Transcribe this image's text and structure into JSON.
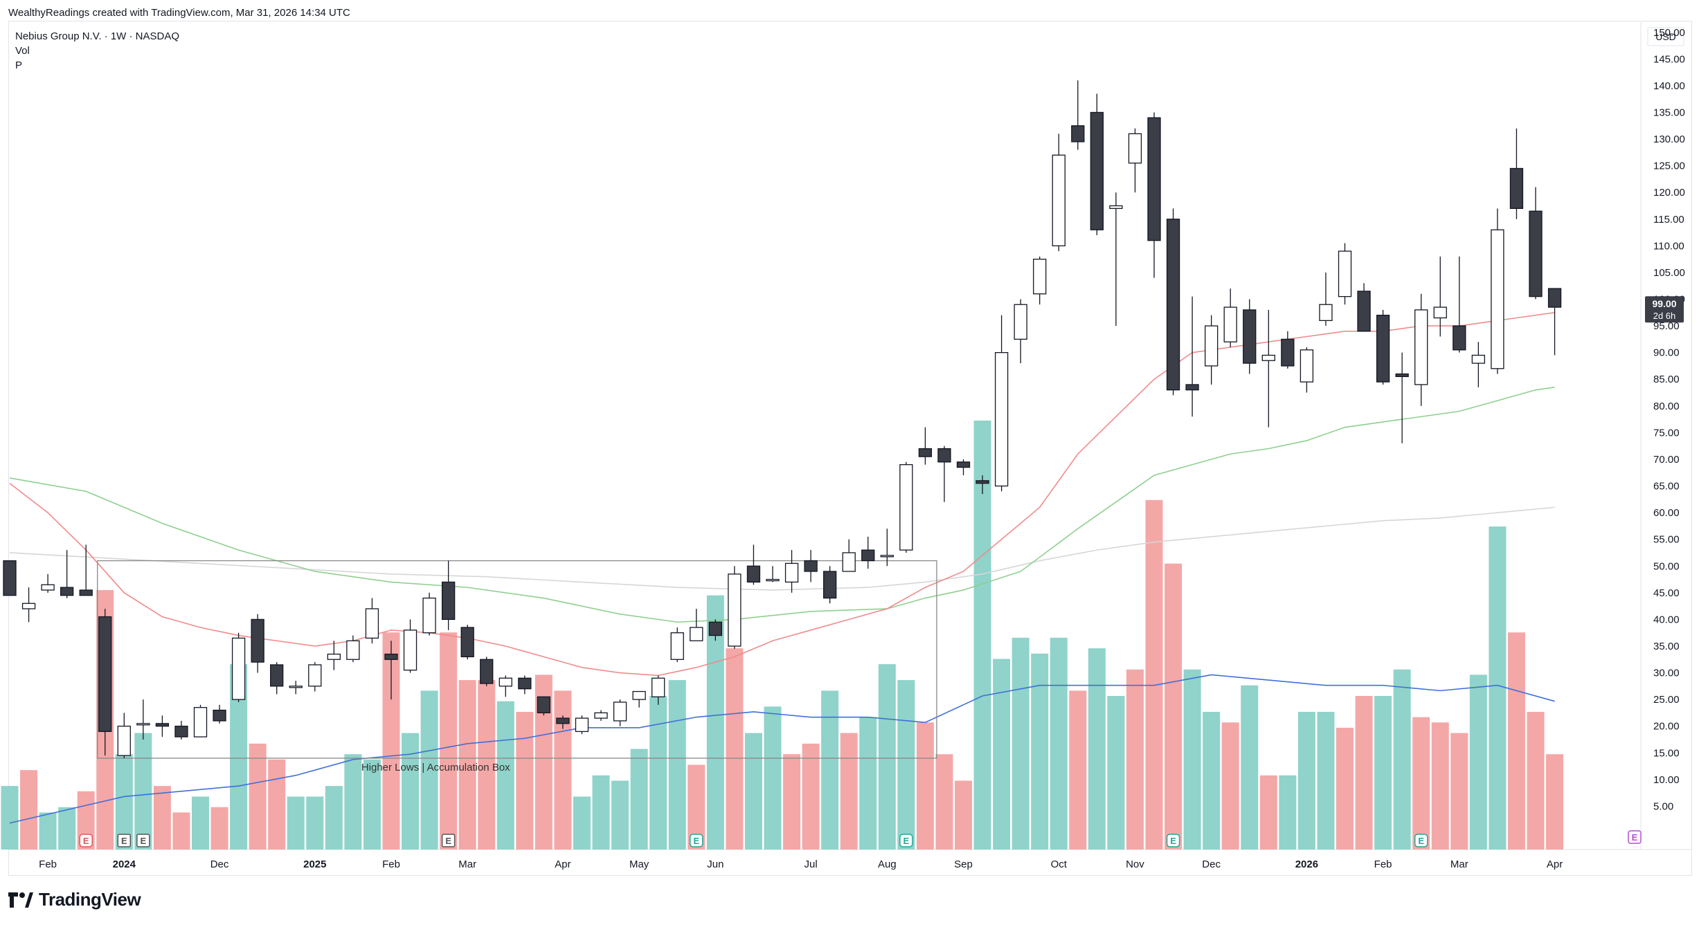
{
  "header": {
    "credit": "WealthyReadings created with TradingView.com, Mar 31, 2026 14:34 UTC"
  },
  "legend": {
    "symbol": "Nebius Group N.V. · 1W · NASDAQ",
    "vol": "Vol",
    "p": "P"
  },
  "footer": {
    "brand": "TradingView"
  },
  "colors": {
    "up_border": "#131722",
    "up_fill": "#ffffff",
    "down_fill": "#3b3d47",
    "vol_up": "#8fd3ca",
    "vol_down": "#f4a7a7",
    "ma_fast": "#f08a8a",
    "ma_mid": "#8ecf8e",
    "ma_slow": "#d6d6d6",
    "vol_ma": "#3f6fd9",
    "box": "#888888",
    "badge": "#3b3d47",
    "earn_green": "#26a69a"
  },
  "chart_data": {
    "type": "candlestick",
    "symbol": "Nebius Group N.V.",
    "interval": "1W",
    "exchange": "NASDAQ",
    "currency": "USD",
    "ylim": [
      0,
      155
    ],
    "y_ticks": [
      "150.00",
      "145.00",
      "140.00",
      "135.00",
      "130.00",
      "125.00",
      "120.00",
      "115.00",
      "110.00",
      "105.00",
      "100.00",
      "95.00",
      "90.00",
      "85.00",
      "80.00",
      "75.00",
      "70.00",
      "65.00",
      "60.00",
      "55.00",
      "50.00",
      "45.00",
      "40.00",
      "35.00",
      "30.00",
      "25.00",
      "20.00",
      "15.00",
      "10.00",
      "5.00"
    ],
    "x_labels": [
      {
        "label": "Feb",
        "i": 2
      },
      {
        "label": "2024",
        "i": 6
      },
      {
        "label": "Dec",
        "i": 11
      },
      {
        "label": "2025",
        "i": 16
      },
      {
        "label": "Feb",
        "i": 20
      },
      {
        "label": "Mar",
        "i": 24
      },
      {
        "label": "Apr",
        "i": 29
      },
      {
        "label": "May",
        "i": 33
      },
      {
        "label": "Jun",
        "i": 37
      },
      {
        "label": "Jul",
        "i": 42
      },
      {
        "label": "Aug",
        "i": 46
      },
      {
        "label": "Sep",
        "i": 50
      },
      {
        "label": "Oct",
        "i": 55
      },
      {
        "label": "Nov",
        "i": 59
      },
      {
        "label": "Dec",
        "i": 63
      },
      {
        "label": "2026",
        "i": 68
      },
      {
        "label": "Feb",
        "i": 72
      },
      {
        "label": "Mar",
        "i": 76
      },
      {
        "label": "Apr",
        "i": 81
      }
    ],
    "candles": [
      [
        51,
        44.5,
        46,
        44.5
      ],
      [
        42,
        43,
        46,
        39.5
      ],
      [
        45.5,
        46.5,
        48.5,
        45
      ],
      [
        46,
        44.5,
        53,
        44
      ],
      [
        45.5,
        44.5,
        54,
        44.5
      ],
      [
        40.5,
        19,
        42,
        14.5
      ],
      [
        14.5,
        20,
        22.5,
        14
      ],
      [
        20.5,
        20.5,
        25,
        17.5
      ],
      [
        20.5,
        20,
        22,
        18
      ],
      [
        20,
        18,
        21,
        17.5
      ],
      [
        18,
        23.5,
        24,
        18
      ],
      [
        23,
        21,
        24,
        20.5
      ],
      [
        25,
        36.5,
        37.5,
        24.5
      ],
      [
        40,
        32,
        41,
        30
      ],
      [
        31.5,
        27.5,
        32,
        26
      ],
      [
        27.5,
        27.5,
        28.5,
        26
      ],
      [
        27.5,
        31.5,
        32,
        26.5
      ],
      [
        32.5,
        33.5,
        36,
        30.5
      ],
      [
        32.5,
        36,
        37,
        32
      ],
      [
        36.5,
        42,
        44,
        35.5
      ],
      [
        33.5,
        32.5,
        36,
        25
      ],
      [
        30.5,
        38,
        40,
        30
      ],
      [
        37.5,
        44,
        45,
        37
      ],
      [
        47,
        40,
        51,
        38
      ],
      [
        38.5,
        33,
        39,
        32.5
      ],
      [
        32.5,
        28,
        33,
        27.5
      ],
      [
        27.5,
        29,
        29.5,
        25.5
      ],
      [
        29,
        27,
        29.5,
        26
      ],
      [
        25.5,
        22.5,
        25.5,
        22
      ],
      [
        21.5,
        20.5,
        22,
        19.5
      ],
      [
        19,
        21.5,
        22,
        18.5
      ],
      [
        21.5,
        22.5,
        23,
        21
      ],
      [
        21,
        24.5,
        25,
        20
      ],
      [
        25,
        26.5,
        26.5,
        23.5
      ],
      [
        25.5,
        29,
        29.5,
        24
      ],
      [
        32.5,
        37.5,
        38.5,
        32
      ],
      [
        36,
        38.5,
        42,
        36
      ],
      [
        39.5,
        37,
        40,
        36
      ],
      [
        35,
        48.5,
        50,
        34.5
      ],
      [
        50,
        47,
        54,
        46.5
      ],
      [
        47.5,
        47.5,
        50,
        47
      ],
      [
        47,
        50.5,
        53,
        45
      ],
      [
        51,
        49,
        53,
        47
      ],
      [
        49,
        44,
        50,
        43
      ],
      [
        49,
        52.5,
        55,
        49
      ],
      [
        53,
        51,
        55.5,
        49.5
      ],
      [
        52,
        52,
        57,
        50
      ],
      [
        53,
        69,
        69.5,
        52.5
      ],
      [
        72,
        70.5,
        76,
        69
      ],
      [
        72,
        69.5,
        72.5,
        62
      ],
      [
        69.5,
        68.5,
        70,
        67
      ],
      [
        66,
        65.5,
        67,
        63.5
      ],
      [
        65,
        90,
        97,
        64
      ],
      [
        92.5,
        99,
        100,
        88
      ],
      [
        101,
        107.5,
        108,
        99
      ],
      [
        110,
        127,
        131,
        109
      ],
      [
        132.5,
        129.5,
        141,
        128
      ],
      [
        135,
        113,
        138.5,
        112
      ],
      [
        117,
        117.5,
        120,
        95
      ],
      [
        125.5,
        131,
        132,
        120
      ],
      [
        134,
        111,
        135,
        104
      ],
      [
        115,
        83,
        117,
        82
      ],
      [
        84,
        83,
        100.5,
        78
      ],
      [
        87.5,
        95,
        97,
        84
      ],
      [
        92,
        98.5,
        102,
        91
      ],
      [
        98,
        88,
        100,
        86
      ],
      [
        88.5,
        89.5,
        98,
        76
      ],
      [
        92.5,
        87.5,
        94,
        87
      ],
      [
        84.5,
        90.5,
        91,
        82.5
      ],
      [
        96,
        99,
        105,
        95
      ],
      [
        100.5,
        109,
        110.5,
        99
      ],
      [
        101.5,
        94,
        103,
        94
      ],
      [
        97,
        84.5,
        98,
        84
      ],
      [
        86,
        85.5,
        90,
        73
      ],
      [
        84,
        98,
        101,
        80
      ],
      [
        96.5,
        98.5,
        108,
        93
      ],
      [
        95,
        90.5,
        108,
        90
      ],
      [
        88,
        89.5,
        92,
        83.5
      ],
      [
        87,
        113,
        117,
        86
      ],
      [
        124.5,
        117,
        132,
        115
      ],
      [
        116.5,
        100.5,
        121,
        100
      ],
      [
        102,
        98.5,
        102,
        89.5
      ]
    ],
    "volume_scale_max": 40.5,
    "volume": [
      [
        6,
        1
      ],
      [
        7.5,
        0
      ],
      [
        3.5,
        1
      ],
      [
        4,
        1
      ],
      [
        5.5,
        0
      ],
      [
        24.5,
        0
      ],
      [
        9,
        1
      ],
      [
        11,
        1
      ],
      [
        6,
        0
      ],
      [
        3.5,
        0
      ],
      [
        5,
        1
      ],
      [
        4,
        0
      ],
      [
        17.5,
        1
      ],
      [
        10,
        0
      ],
      [
        8.5,
        0
      ],
      [
        5,
        1
      ],
      [
        5,
        1
      ],
      [
        6,
        1
      ],
      [
        9,
        1
      ],
      [
        8.5,
        1
      ],
      [
        20.5,
        0
      ],
      [
        11,
        1
      ],
      [
        15,
        1
      ],
      [
        20.5,
        0
      ],
      [
        16,
        0
      ],
      [
        16,
        0
      ],
      [
        14,
        1
      ],
      [
        13,
        0
      ],
      [
        16.5,
        0
      ],
      [
        15,
        0
      ],
      [
        5,
        1
      ],
      [
        7,
        1
      ],
      [
        6.5,
        1
      ],
      [
        9.5,
        1
      ],
      [
        14.5,
        1
      ],
      [
        16,
        1
      ],
      [
        8,
        0
      ],
      [
        24,
        1
      ],
      [
        19,
        0
      ],
      [
        11,
        1
      ],
      [
        13.5,
        1
      ],
      [
        9,
        0
      ],
      [
        10,
        0
      ],
      [
        15,
        1
      ],
      [
        11,
        0
      ],
      [
        12.5,
        1
      ],
      [
        17.5,
        1
      ],
      [
        16,
        1
      ],
      [
        12,
        0
      ],
      [
        9,
        0
      ],
      [
        6.5,
        0
      ],
      [
        40.5,
        1
      ],
      [
        18,
        1
      ],
      [
        20,
        1
      ],
      [
        18.5,
        1
      ],
      [
        20,
        1
      ],
      [
        15,
        0
      ],
      [
        19,
        1
      ],
      [
        14.5,
        1
      ],
      [
        17,
        0
      ],
      [
        33,
        0
      ],
      [
        27,
        0
      ],
      [
        17,
        1
      ],
      [
        13,
        1
      ],
      [
        12,
        0
      ],
      [
        15.5,
        1
      ],
      [
        7,
        0
      ],
      [
        7,
        1
      ],
      [
        13,
        1
      ],
      [
        13,
        1
      ],
      [
        11.5,
        0
      ],
      [
        14.5,
        0
      ],
      [
        14.5,
        1
      ],
      [
        17,
        1
      ],
      [
        12.5,
        0
      ],
      [
        12,
        0
      ],
      [
        11,
        0
      ],
      [
        16.5,
        1
      ],
      [
        30.5,
        1
      ],
      [
        20.5,
        0
      ],
      [
        13,
        0
      ],
      [
        9,
        0
      ]
    ],
    "volume_ma": [
      [
        0,
        2.5
      ],
      [
        6,
        5
      ],
      [
        9,
        5.5
      ],
      [
        12,
        6
      ],
      [
        15,
        7
      ],
      [
        18,
        8.5
      ],
      [
        21,
        9
      ],
      [
        24,
        10
      ],
      [
        27,
        10.5
      ],
      [
        30,
        11.5
      ],
      [
        33,
        11.5
      ],
      [
        36,
        12.5
      ],
      [
        39,
        13
      ],
      [
        42,
        12.5
      ],
      [
        45,
        12.5
      ],
      [
        48,
        12
      ],
      [
        51,
        14.5
      ],
      [
        54,
        15.5
      ],
      [
        57,
        15.5
      ],
      [
        60,
        15.5
      ],
      [
        63,
        16.5
      ],
      [
        66,
        16
      ],
      [
        69,
        15.5
      ],
      [
        72,
        15.5
      ],
      [
        75,
        15
      ],
      [
        78,
        15.5
      ],
      [
        81,
        14
      ]
    ],
    "ma_fast": [
      [
        0,
        65.5
      ],
      [
        2,
        60
      ],
      [
        4,
        53
      ],
      [
        6,
        45
      ],
      [
        8,
        40.5
      ],
      [
        10,
        38.5
      ],
      [
        12,
        37
      ],
      [
        14,
        36
      ],
      [
        16,
        35
      ],
      [
        18,
        36
      ],
      [
        20,
        38
      ],
      [
        22,
        37.5
      ],
      [
        24,
        36.5
      ],
      [
        26,
        35
      ],
      [
        28,
        33
      ],
      [
        30,
        31
      ],
      [
        32,
        30
      ],
      [
        34,
        29.5
      ],
      [
        36,
        31
      ],
      [
        38,
        33
      ],
      [
        40,
        36
      ],
      [
        42,
        38
      ],
      [
        44,
        40
      ],
      [
        46,
        42
      ],
      [
        48,
        46
      ],
      [
        50,
        49
      ],
      [
        52,
        55
      ],
      [
        54,
        61
      ],
      [
        56,
        71
      ],
      [
        58,
        78
      ],
      [
        60,
        85
      ],
      [
        62,
        90
      ],
      [
        64,
        91
      ],
      [
        66,
        92
      ],
      [
        68,
        93
      ],
      [
        70,
        94
      ],
      [
        72,
        94
      ],
      [
        74,
        95
      ],
      [
        76,
        95
      ],
      [
        78,
        96
      ],
      [
        80,
        97
      ],
      [
        81,
        97.5
      ]
    ],
    "ma_mid": [
      [
        0,
        66.5
      ],
      [
        4,
        64
      ],
      [
        8,
        58
      ],
      [
        12,
        53
      ],
      [
        16,
        49
      ],
      [
        20,
        47
      ],
      [
        24,
        46
      ],
      [
        28,
        44
      ],
      [
        32,
        41
      ],
      [
        35,
        39.5
      ],
      [
        38,
        40
      ],
      [
        42,
        41.5
      ],
      [
        46,
        42
      ],
      [
        48,
        44
      ],
      [
        50,
        45.5
      ],
      [
        53,
        49
      ],
      [
        56,
        57
      ],
      [
        58,
        62
      ],
      [
        60,
        67
      ],
      [
        62,
        69
      ],
      [
        64,
        71
      ],
      [
        66,
        72
      ],
      [
        68,
        73.5
      ],
      [
        70,
        76
      ],
      [
        72,
        77
      ],
      [
        74,
        78
      ],
      [
        76,
        79
      ],
      [
        78,
        81
      ],
      [
        80,
        83
      ],
      [
        81,
        83.5
      ]
    ],
    "ma_slow": [
      [
        0,
        52.5
      ],
      [
        5,
        51.5
      ],
      [
        10,
        50.5
      ],
      [
        15,
        49.5
      ],
      [
        20,
        48.5
      ],
      [
        25,
        48
      ],
      [
        30,
        47
      ],
      [
        35,
        46
      ],
      [
        40,
        45.5
      ],
      [
        45,
        46
      ],
      [
        48,
        47
      ],
      [
        51,
        48.5
      ],
      [
        54,
        51
      ],
      [
        57,
        53
      ],
      [
        60,
        54.5
      ],
      [
        63,
        55.5
      ],
      [
        66,
        56.5
      ],
      [
        69,
        57.5
      ],
      [
        72,
        58.5
      ],
      [
        75,
        59
      ],
      [
        78,
        60
      ],
      [
        81,
        61
      ]
    ],
    "accumulation_box": {
      "i_start": 4.6,
      "i_end": 48.6,
      "top": 51,
      "bottom": 14,
      "label": "Higher Lows | Accumulation Box"
    },
    "earnings_markers": [
      {
        "i": 4,
        "type": "red",
        "label": "E"
      },
      {
        "i": 6,
        "type": "gray",
        "label": "E"
      },
      {
        "i": 7,
        "type": "gray",
        "label": "E"
      },
      {
        "i": 23,
        "type": "gray",
        "label": "E"
      },
      {
        "i": 36,
        "type": "green",
        "label": "E"
      },
      {
        "i": 47,
        "type": "green",
        "label": "E"
      },
      {
        "i": 61,
        "type": "green",
        "label": "E"
      },
      {
        "i": 74,
        "type": "green",
        "label": "E"
      }
    ],
    "price_badge": {
      "price": "99.00",
      "countdown": "2d 6h",
      "value": 99
    },
    "last_marker": {
      "label": "E",
      "type": "purple"
    }
  }
}
